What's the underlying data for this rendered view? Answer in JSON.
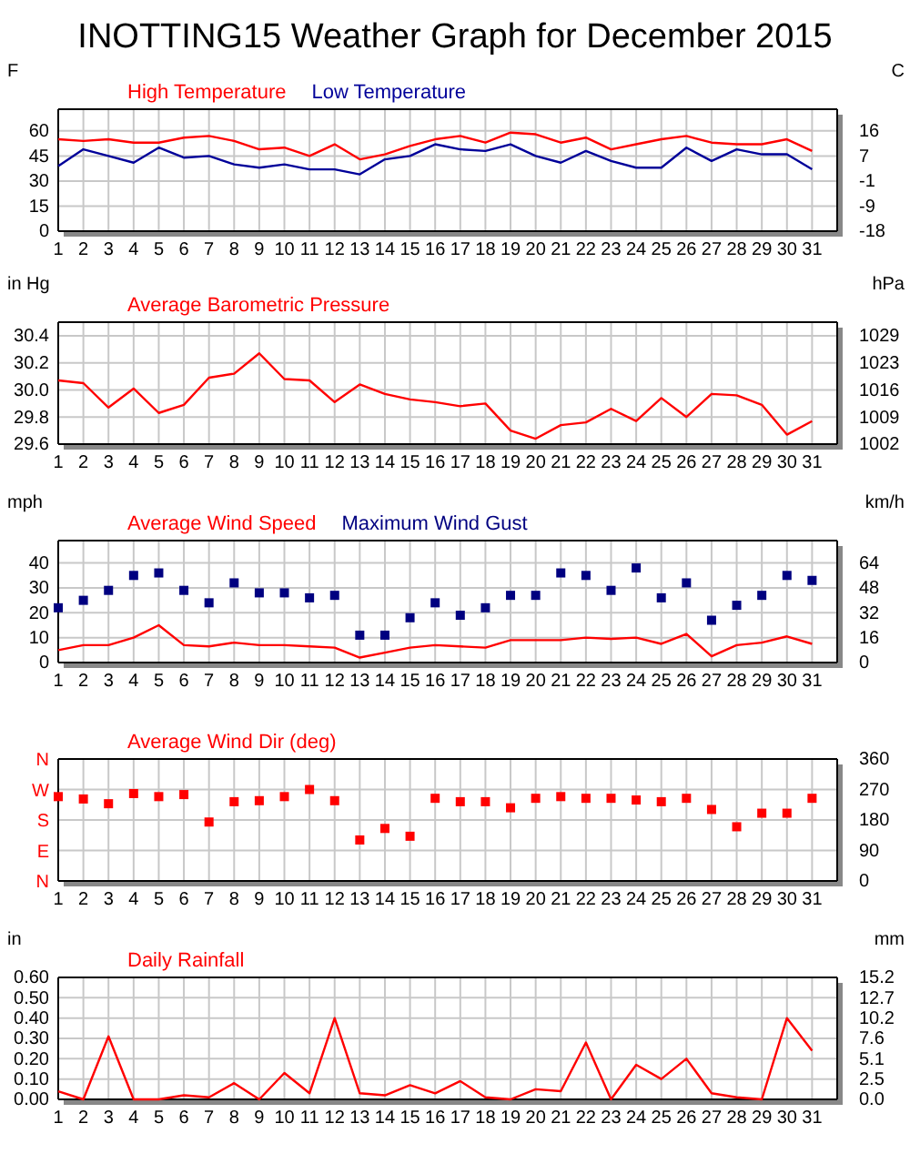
{
  "chart_data": [
    {
      "type": "line",
      "title": "INOTTING15 Weather Graph for December 2015",
      "ylabel": "F",
      "y2label": "C",
      "x": [
        1,
        2,
        3,
        4,
        5,
        6,
        7,
        8,
        9,
        10,
        11,
        12,
        13,
        14,
        15,
        16,
        17,
        18,
        19,
        20,
        21,
        22,
        23,
        24,
        25,
        26,
        27,
        28,
        29,
        30,
        31
      ],
      "xlim": [
        1,
        32
      ],
      "xticks": [
        1,
        2,
        3,
        4,
        5,
        6,
        7,
        8,
        9,
        10,
        11,
        12,
        13,
        14,
        15,
        16,
        17,
        18,
        19,
        20,
        21,
        22,
        23,
        24,
        25,
        26,
        27,
        28,
        29,
        30,
        31
      ],
      "ylim": [
        0,
        73
      ],
      "yticks": [
        0,
        15,
        30,
        45,
        60
      ],
      "y2lim": [
        -17.8,
        22.8
      ],
      "y2ticks": [
        {
          "value": -17.8,
          "label": "-18"
        },
        {
          "value": -9.4,
          "label": "-9"
        },
        {
          "value": -1.1,
          "label": "-1"
        },
        {
          "value": 7.2,
          "label": "7"
        },
        {
          "value": 15.6,
          "label": "16"
        }
      ],
      "grid": true,
      "legend": "top",
      "series": [
        {
          "name": "High Temperature",
          "color": "#ff0000",
          "values": [
            55,
            54,
            55,
            53,
            53,
            56,
            57,
            54,
            49,
            50,
            45,
            52,
            43,
            46,
            51,
            55,
            57,
            53,
            59,
            58,
            53,
            56,
            49,
            52,
            55,
            57,
            53,
            52,
            52,
            55,
            48
          ]
        },
        {
          "name": "Low Temperature",
          "color": "#000099",
          "values": [
            39,
            49,
            45,
            41,
            50,
            44,
            45,
            40,
            38,
            40,
            37,
            37,
            34,
            43,
            45,
            52,
            49,
            48,
            52,
            45,
            41,
            48,
            42,
            38,
            38,
            50,
            42,
            49,
            46,
            46,
            37
          ]
        }
      ]
    },
    {
      "type": "line",
      "ylabel": "in Hg",
      "y2label": "hPa",
      "x": [
        1,
        2,
        3,
        4,
        5,
        6,
        7,
        8,
        9,
        10,
        11,
        12,
        13,
        14,
        15,
        16,
        17,
        18,
        19,
        20,
        21,
        22,
        23,
        24,
        25,
        26,
        27,
        28,
        29,
        30,
        31
      ],
      "xlim": [
        1,
        32
      ],
      "xticks": [
        1,
        2,
        3,
        4,
        5,
        6,
        7,
        8,
        9,
        10,
        11,
        12,
        13,
        14,
        15,
        16,
        17,
        18,
        19,
        20,
        21,
        22,
        23,
        24,
        25,
        26,
        27,
        28,
        29,
        30,
        31
      ],
      "ylim": [
        29.6,
        30.5
      ],
      "yticks": [
        {
          "value": 29.6,
          "label": "29.6"
        },
        {
          "value": 29.8,
          "label": "29.8"
        },
        {
          "value": 30.0,
          "label": "30.0"
        },
        {
          "value": 30.2,
          "label": "30.2"
        },
        {
          "value": 30.4,
          "label": "30.4"
        }
      ],
      "y2lim": [
        1002.4,
        1032.8
      ],
      "y2ticks": [
        {
          "value": 1002.4,
          "label": "1002"
        },
        {
          "value": 1009.1,
          "label": "1009"
        },
        {
          "value": 1015.9,
          "label": "1016"
        },
        {
          "value": 1022.7,
          "label": "1023"
        },
        {
          "value": 1029.5,
          "label": "1029"
        }
      ],
      "grid": true,
      "legend": "top",
      "series": [
        {
          "name": "Average Barometric Pressure",
          "color": "#ff0000",
          "values": [
            30.07,
            30.05,
            29.87,
            30.01,
            29.83,
            29.89,
            30.09,
            30.12,
            30.27,
            30.08,
            30.07,
            29.91,
            30.04,
            29.97,
            29.93,
            29.91,
            29.88,
            29.9,
            29.7,
            29.64,
            29.74,
            29.76,
            29.86,
            29.77,
            29.94,
            29.8,
            29.97,
            29.96,
            29.89,
            29.67,
            29.77
          ]
        }
      ]
    },
    {
      "type": "line",
      "ylabel": "mph",
      "y2label": "km/h",
      "x": [
        1,
        2,
        3,
        4,
        5,
        6,
        7,
        8,
        9,
        10,
        11,
        12,
        13,
        14,
        15,
        16,
        17,
        18,
        19,
        20,
        21,
        22,
        23,
        24,
        25,
        26,
        27,
        28,
        29,
        30,
        31
      ],
      "xlim": [
        1,
        32
      ],
      "xticks": [
        1,
        2,
        3,
        4,
        5,
        6,
        7,
        8,
        9,
        10,
        11,
        12,
        13,
        14,
        15,
        16,
        17,
        18,
        19,
        20,
        21,
        22,
        23,
        24,
        25,
        26,
        27,
        28,
        29,
        30,
        31
      ],
      "ylim": [
        0,
        49
      ],
      "yticks": [
        0,
        10,
        20,
        30,
        40
      ],
      "y2lim": [
        0,
        78.9
      ],
      "y2ticks": [
        {
          "value": 0,
          "label": "0"
        },
        {
          "value": 16.1,
          "label": "16"
        },
        {
          "value": 32.2,
          "label": "32"
        },
        {
          "value": 48.3,
          "label": "48"
        },
        {
          "value": 64.4,
          "label": "64"
        }
      ],
      "grid": true,
      "legend": "top",
      "series": [
        {
          "name": "Average Wind Speed",
          "color": "#ff0000",
          "values": [
            5,
            7,
            7,
            10,
            15,
            7,
            6.5,
            8,
            7,
            7,
            6.5,
            6,
            2,
            4,
            6,
            7,
            6.5,
            6,
            9,
            9,
            9,
            10,
            9.5,
            10,
            7.5,
            11.5,
            2.5,
            7,
            8,
            10.5,
            7.5
          ]
        },
        {
          "name": "Maximum Wind Gust",
          "type": "scatter",
          "marker": "square",
          "color": "#000080",
          "values": [
            22,
            25,
            29,
            35,
            36,
            29,
            24,
            32,
            28,
            28,
            26,
            27,
            11,
            11,
            18,
            24,
            19,
            22,
            27,
            27,
            36,
            35,
            29,
            38,
            26,
            32,
            17,
            23,
            27,
            35,
            33
          ]
        }
      ]
    },
    {
      "type": "scatter",
      "x": [
        1,
        2,
        3,
        4,
        5,
        6,
        7,
        8,
        9,
        10,
        11,
        12,
        13,
        14,
        15,
        16,
        17,
        18,
        19,
        20,
        21,
        22,
        23,
        24,
        25,
        26,
        27,
        28,
        29,
        30,
        31
      ],
      "xlim": [
        1,
        32
      ],
      "xticks": [
        1,
        2,
        3,
        4,
        5,
        6,
        7,
        8,
        9,
        10,
        11,
        12,
        13,
        14,
        15,
        16,
        17,
        18,
        19,
        20,
        21,
        22,
        23,
        24,
        25,
        26,
        27,
        28,
        29,
        30,
        31
      ],
      "ylim": [
        0,
        360
      ],
      "yticks": [
        0,
        90,
        180,
        270,
        360
      ],
      "annotations": [
        "N",
        "W",
        "S",
        "E",
        "N"
      ],
      "grid": true,
      "legend": "top",
      "marker": "square",
      "series": [
        {
          "name": "Average Wind Dir (deg)",
          "color": "#ff0000",
          "values": [
            249,
            242,
            228,
            258,
            249,
            255,
            174,
            234,
            237,
            249,
            270,
            237,
            121,
            155,
            132,
            244,
            234,
            234,
            216,
            244,
            249,
            244,
            244,
            239,
            234,
            244,
            211,
            160,
            200,
            200,
            244
          ]
        }
      ]
    },
    {
      "type": "line",
      "ylabel": "in",
      "y2label": "mm",
      "x": [
        1,
        2,
        3,
        4,
        5,
        6,
        7,
        8,
        9,
        10,
        11,
        12,
        13,
        14,
        15,
        16,
        17,
        18,
        19,
        20,
        21,
        22,
        23,
        24,
        25,
        26,
        27,
        28,
        29,
        30,
        31
      ],
      "xlim": [
        1,
        32
      ],
      "xticks": [
        1,
        2,
        3,
        4,
        5,
        6,
        7,
        8,
        9,
        10,
        11,
        12,
        13,
        14,
        15,
        16,
        17,
        18,
        19,
        20,
        21,
        22,
        23,
        24,
        25,
        26,
        27,
        28,
        29,
        30,
        31
      ],
      "ylim": [
        0,
        0.6
      ],
      "yticks": [
        {
          "value": 0,
          "label": "0.00"
        },
        {
          "value": 0.1,
          "label": "0.10"
        },
        {
          "value": 0.2,
          "label": "0.20"
        },
        {
          "value": 0.3,
          "label": "0.30"
        },
        {
          "value": 0.4,
          "label": "0.40"
        },
        {
          "value": 0.5,
          "label": "0.50"
        },
        {
          "value": 0.6,
          "label": "0.60"
        }
      ],
      "y2lim": [
        0,
        15.24
      ],
      "y2ticks": [
        {
          "value": 0,
          "label": "0.0"
        },
        {
          "value": 2.54,
          "label": "2.5"
        },
        {
          "value": 5.08,
          "label": "5.1"
        },
        {
          "value": 7.62,
          "label": "7.6"
        },
        {
          "value": 10.16,
          "label": "10.2"
        },
        {
          "value": 12.7,
          "label": "12.7"
        },
        {
          "value": 15.24,
          "label": "15.2"
        }
      ],
      "grid": true,
      "legend": "top",
      "series": [
        {
          "name": "Daily Rainfall",
          "color": "#ff0000",
          "values": [
            0.04,
            0,
            0.31,
            0,
            0,
            0.02,
            0.01,
            0.08,
            0,
            0.13,
            0.03,
            0.4,
            0.03,
            0.02,
            0.07,
            0.03,
            0.09,
            0.01,
            0,
            0.05,
            0.04,
            0.28,
            0,
            0.17,
            0.1,
            0.2,
            0.03,
            0.01,
            0,
            0.4,
            0.24
          ]
        }
      ]
    }
  ]
}
